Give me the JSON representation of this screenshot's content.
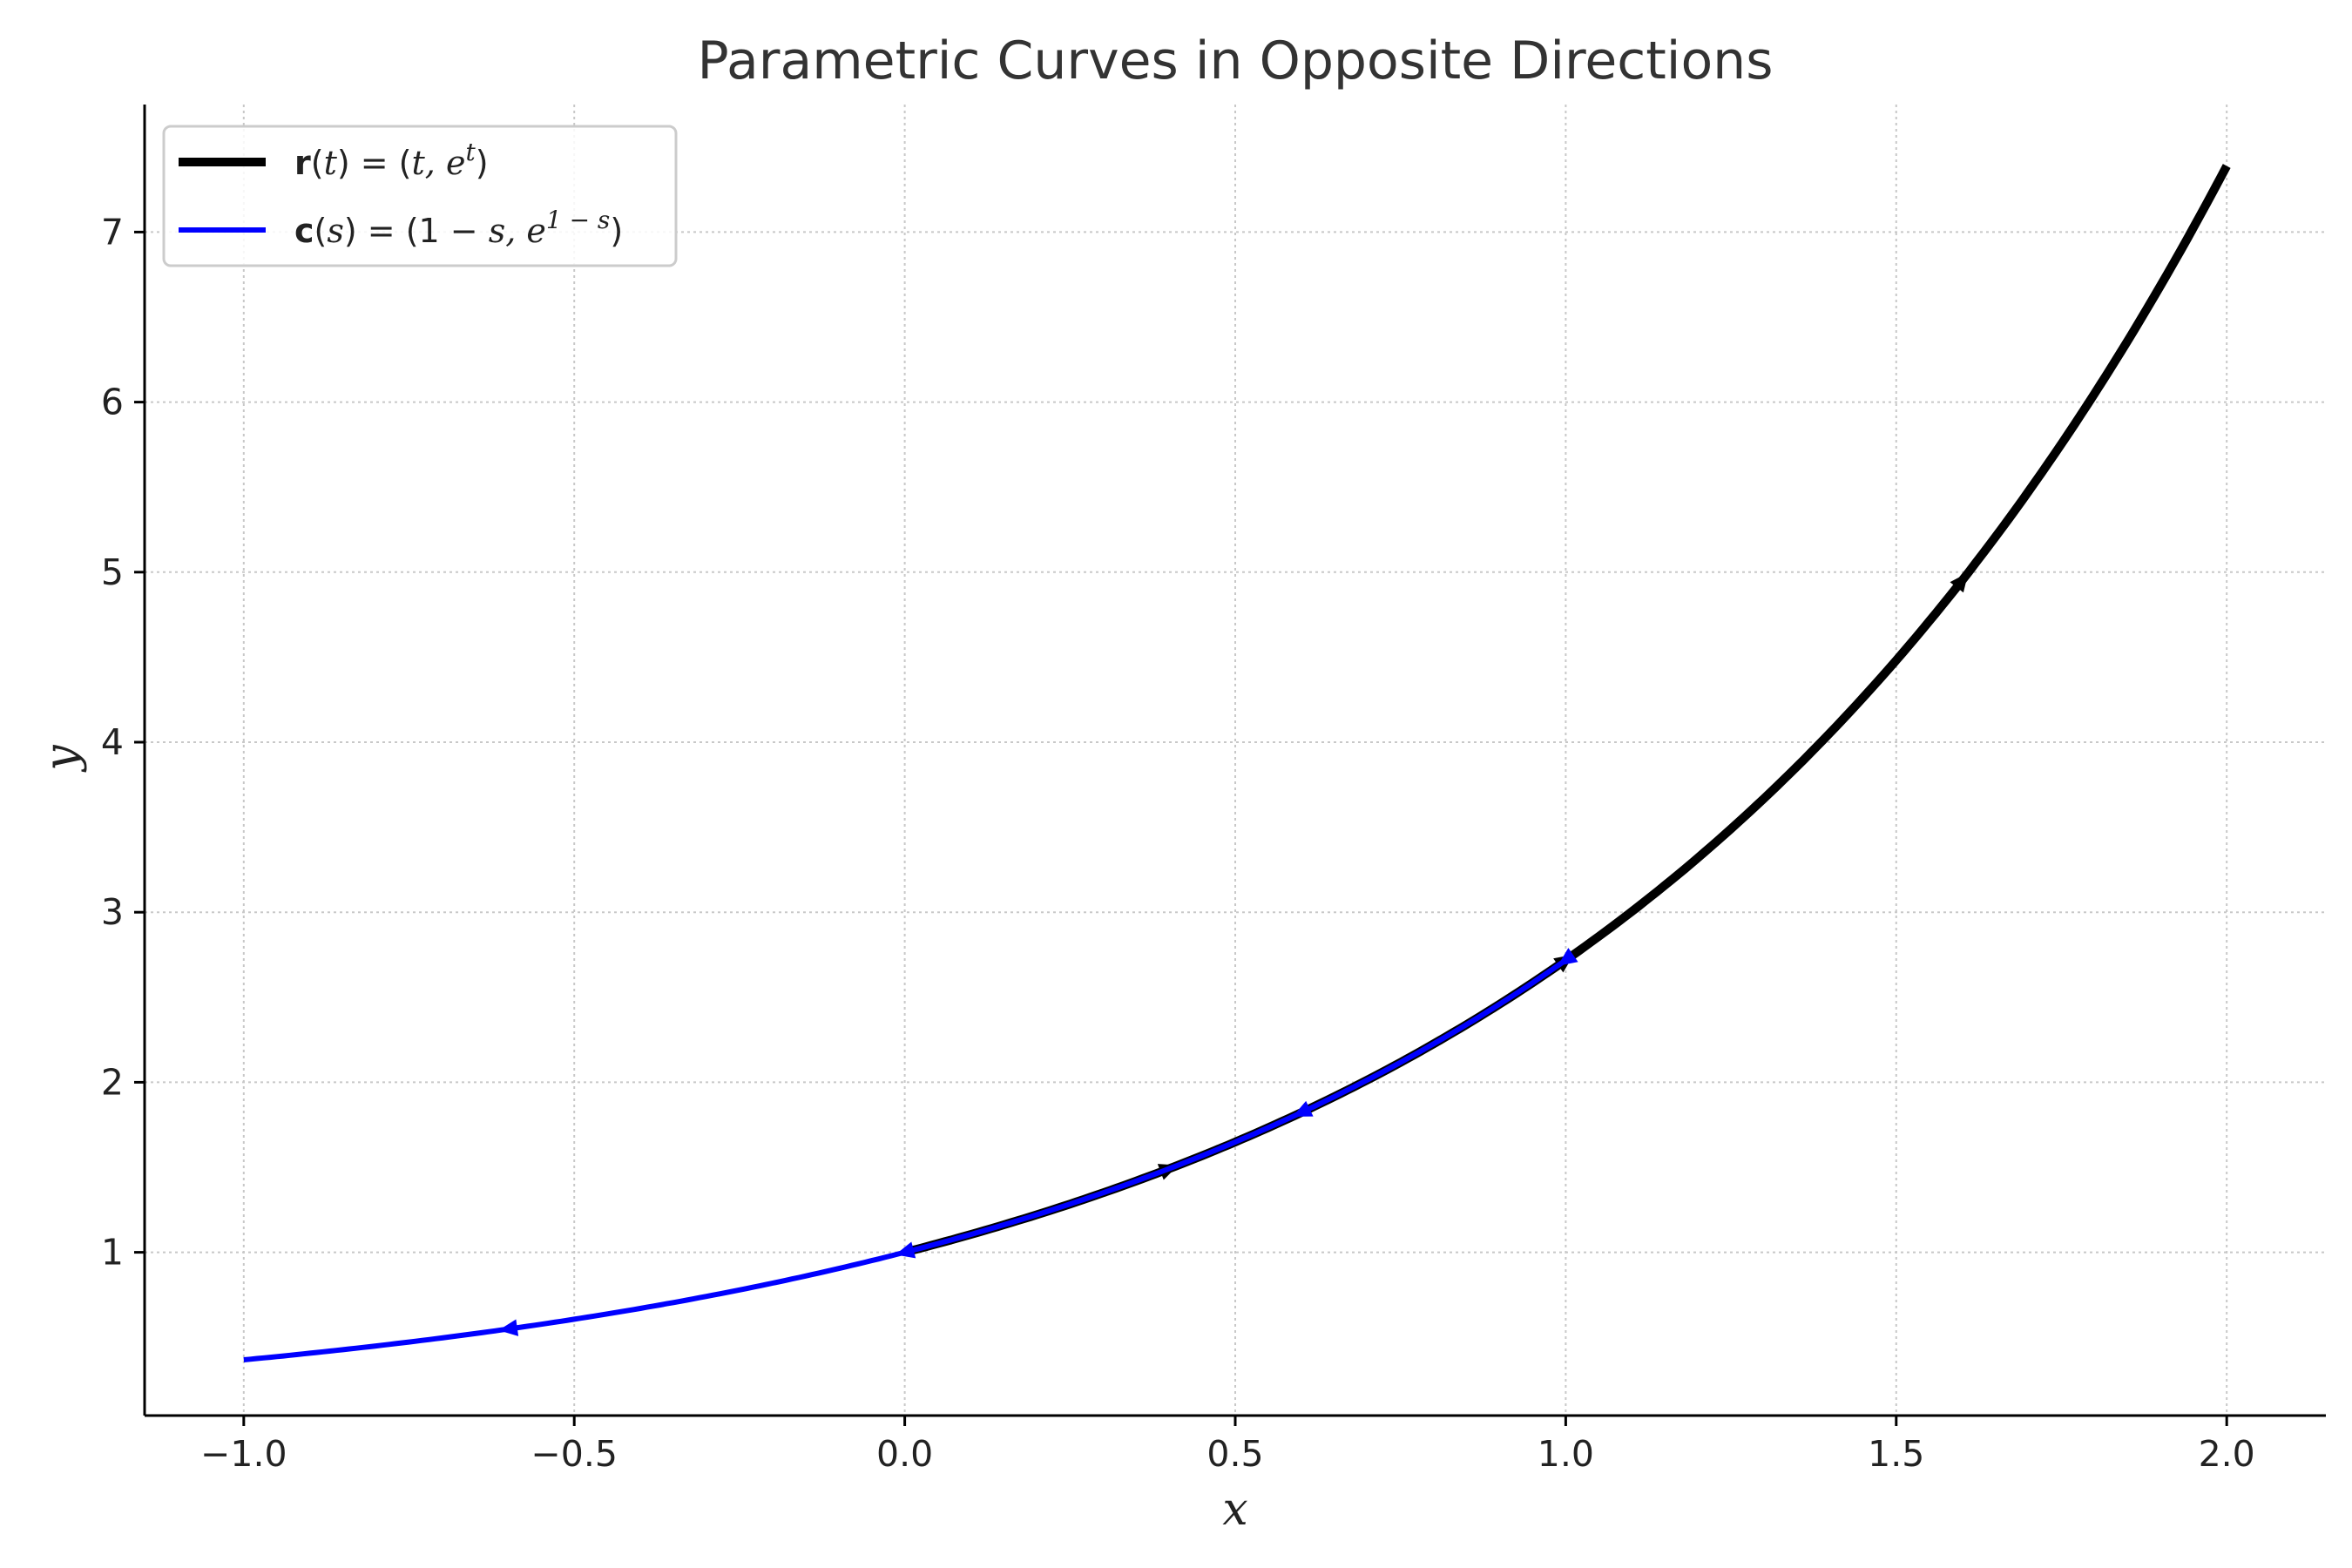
{
  "chart_data": {
    "type": "line",
    "title": "Parametric Curves in Opposite Directions",
    "xlabel": "x",
    "ylabel": "y",
    "xlim": [
      -1.15,
      2.15
    ],
    "ylim": [
      0.04,
      7.75
    ],
    "x_ticks": [
      -1.0,
      -0.5,
      0.0,
      0.5,
      1.0,
      1.5,
      2.0
    ],
    "x_tick_labels": [
      "−1.0",
      "−0.5",
      "0.0",
      "0.5",
      "1.0",
      "1.5",
      "2.0"
    ],
    "y_ticks": [
      1,
      2,
      3,
      4,
      5,
      6,
      7
    ],
    "y_tick_labels": [
      "1",
      "2",
      "3",
      "4",
      "5",
      "6",
      "7"
    ],
    "grid": true,
    "legend_position": "top-left",
    "series": [
      {
        "name": "r(t) = (t, e^t)",
        "legend_parts": {
          "bold": "r",
          "open": "(",
          "param": "t",
          "mid": ") = (",
          "body": "t, e",
          "sup": "t",
          "close": ")"
        },
        "color": "#000000",
        "param_range": [
          0,
          2
        ],
        "x": [
          0.0,
          0.1,
          0.2,
          0.3,
          0.4,
          0.5,
          0.6,
          0.7,
          0.8,
          0.9,
          1.0,
          1.1,
          1.2,
          1.3,
          1.4,
          1.5,
          1.6,
          1.7,
          1.8,
          1.9,
          2.0
        ],
        "y": [
          1.0,
          1.105,
          1.221,
          1.35,
          1.492,
          1.649,
          1.822,
          2.014,
          2.226,
          2.46,
          2.718,
          3.004,
          3.32,
          3.669,
          4.055,
          4.482,
          4.953,
          5.474,
          6.05,
          6.686,
          7.389
        ],
        "arrows": [
          [
            0.4,
            1.492
          ],
          [
            1.0,
            2.718
          ],
          [
            1.6,
            4.953
          ]
        ]
      },
      {
        "name": "c(s) = (1 − s, e^(1−s))",
        "legend_parts": {
          "bold": "c",
          "open": "(",
          "param": "s",
          "mid": ") = (1 − ",
          "body": "s, e",
          "sup": "1 − s",
          "close": ")"
        },
        "color": "#0000ff",
        "param_range": [
          0,
          2
        ],
        "x": [
          1.0,
          0.9,
          0.8,
          0.7,
          0.6,
          0.5,
          0.4,
          0.3,
          0.2,
          0.1,
          0.0,
          -0.1,
          -0.2,
          -0.3,
          -0.4,
          -0.5,
          -0.6,
          -0.7,
          -0.8,
          -0.9,
          -1.0
        ],
        "y": [
          2.718,
          2.46,
          2.226,
          2.014,
          1.822,
          1.649,
          1.492,
          1.35,
          1.221,
          1.105,
          1.0,
          0.905,
          0.819,
          0.741,
          0.67,
          0.607,
          0.549,
          0.497,
          0.449,
          0.407,
          0.368
        ],
        "arrows": [
          [
            1.0,
            2.718
          ],
          [
            0.6,
            1.822
          ],
          [
            0.0,
            1.0
          ],
          [
            -0.6,
            0.549
          ]
        ]
      }
    ]
  }
}
